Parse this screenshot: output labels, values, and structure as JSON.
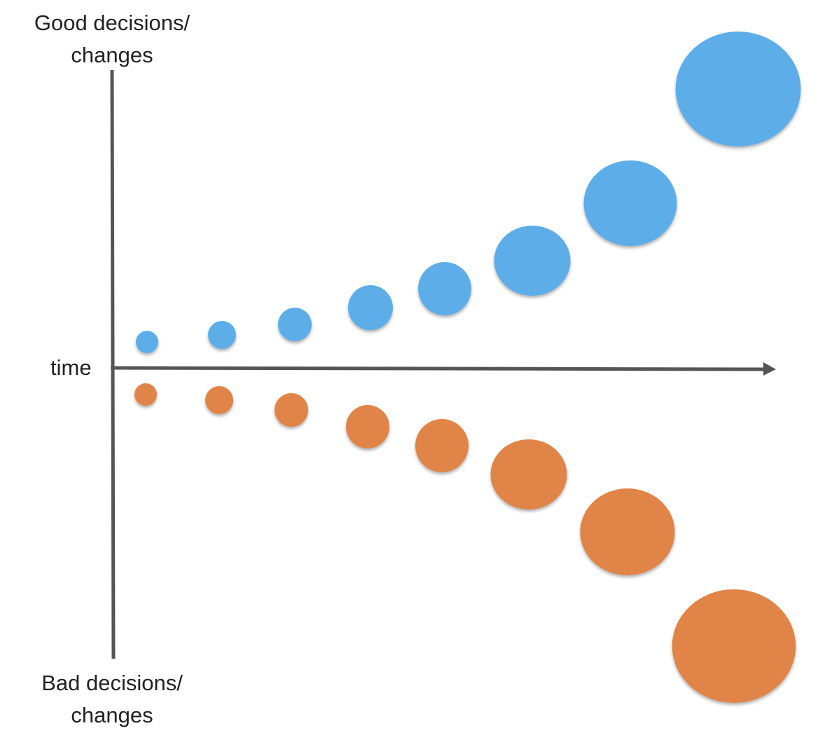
{
  "labels": {
    "top_line1": "Good decisions/",
    "top_line2": "changes",
    "bottom_line1": "Bad decisions/",
    "bottom_line2": "changes",
    "x_axis": "time"
  },
  "colors": {
    "good": "#5dade8",
    "bad": "#e08447",
    "axis": "#555555"
  },
  "chart_data": {
    "type": "scatter",
    "title": "",
    "xlabel": "time",
    "ylabel_top": "Good decisions/ changes",
    "ylabel_bottom": "Bad decisions/ changes",
    "xlim": [
      0,
      94.5
    ],
    "ylim": [
      -41.5,
      42.5
    ],
    "grid": false,
    "series": [
      {
        "name": "good",
        "x": [
          5,
          15.7,
          26.1,
          36.9,
          47.5,
          60,
          74,
          89.4
        ],
        "y": [
          3.7,
          4.7,
          6.2,
          8.6,
          11.3,
          15.3,
          23.5,
          39.8
        ],
        "size": [
          1.6,
          2.0,
          2.4,
          3.2,
          3.8,
          5.0,
          6.1,
          8.2
        ]
      },
      {
        "name": "bad",
        "x": [
          4.8,
          15.3,
          25.6,
          36.5,
          47.1,
          59.5,
          73.6,
          88.8
        ],
        "y": [
          -3.8,
          -4.6,
          -6.0,
          -8.4,
          -11.1,
          -15.2,
          -23.4,
          -39.7
        ],
        "size": [
          1.6,
          2.0,
          2.4,
          3.1,
          3.8,
          5.0,
          6.2,
          8.1
        ]
      }
    ]
  }
}
